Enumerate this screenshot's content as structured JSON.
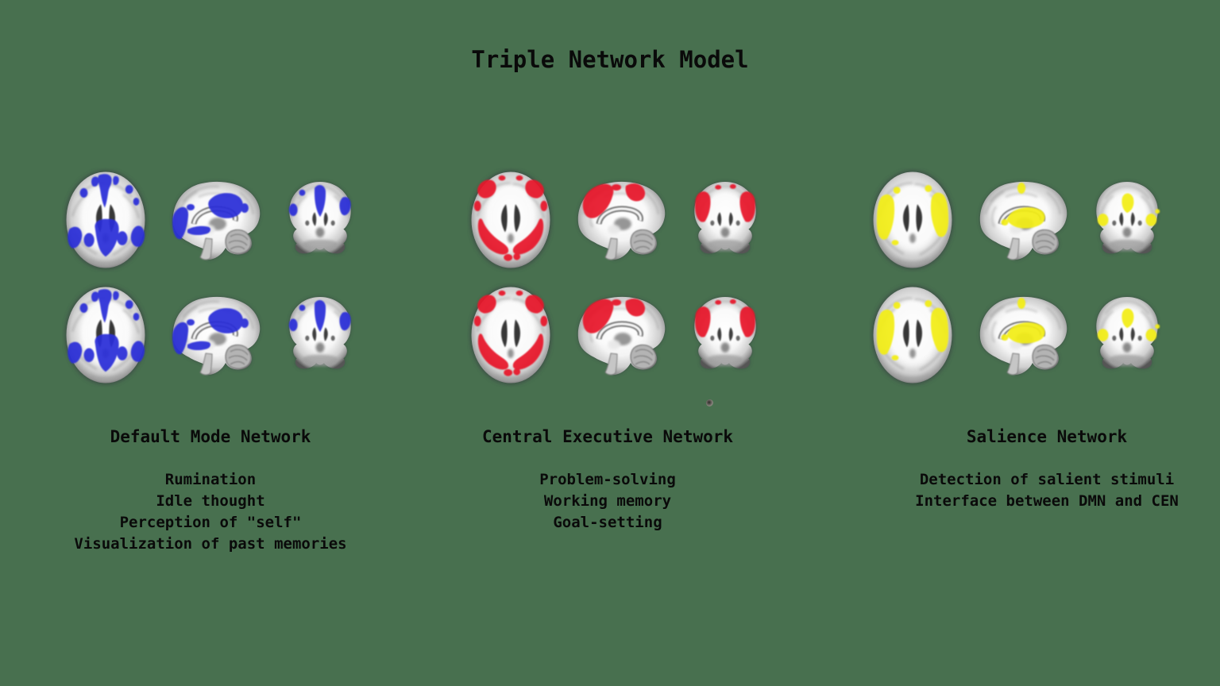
{
  "title": "Triple Network Model",
  "colors": {
    "background": "#48704f",
    "text": "#0a0a0a"
  },
  "brain_views": [
    "axial",
    "sagittal",
    "coronal"
  ],
  "rows_per_network": 2,
  "networks": [
    {
      "id": "dmn",
      "name": "Default Mode Network",
      "color": "#2a2fd8",
      "functions": [
        "Rumination",
        "Idle thought",
        "Perception of \"self\"",
        "Visualization of past memories"
      ]
    },
    {
      "id": "cen",
      "name": "Central Executive Network",
      "color": "#e8192b",
      "functions": [
        "Problem-solving",
        "Working memory",
        "Goal-setting"
      ]
    },
    {
      "id": "sn",
      "name": "Salience Network",
      "color": "#f3ee16",
      "functions": [
        "Detection of salient stimuli",
        "Interface between DMN and CEN"
      ]
    }
  ]
}
